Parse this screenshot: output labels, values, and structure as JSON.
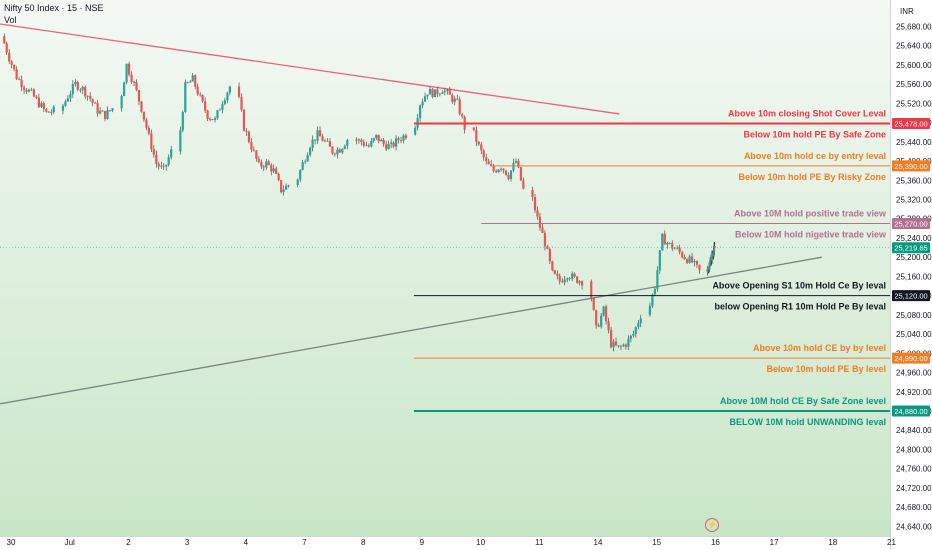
{
  "header": {
    "title": "Nifty 50 Index · 15 · NSE",
    "volume_label": "Vol"
  },
  "currency": "INR",
  "icons": {
    "bottom_marker": "lightning-icon"
  },
  "colors": {
    "background_top": "#f4f9f4",
    "background_bottom": "#c9e6c8",
    "candle_up": "#26a69a",
    "candle_down": "#ef5350",
    "wick": "#333333",
    "red_line": "#f23645",
    "orange_line": "#f57c1f",
    "purple_line": "#b4708f",
    "black_line": "#131722",
    "teal_line": "#089981",
    "current_price": "#089981",
    "trendline_down": "#f06277",
    "trendline_up": "#7a8580"
  },
  "chart_data": {
    "type": "candlestick",
    "title": "Nifty 50 Index · 15 · NSE",
    "xlabel": "",
    "ylabel": "",
    "ylim": [
      24620,
      25735
    ],
    "y_ticks": [
      25680,
      25640,
      25600,
      25560,
      25520,
      25480,
      25440,
      25400,
      25360,
      25320,
      25280,
      25240,
      25200,
      25160,
      25120,
      25080,
      25040,
      25000,
      24960,
      24920,
      24880,
      24840,
      24800,
      24760,
      24720,
      24680,
      24640
    ],
    "y_tick_labels": [
      "25,680.00",
      "25,640.00",
      "25,600.00",
      "25,560.00",
      "25,520.00",
      "25,480.00",
      "25,440.00",
      "25,400.00",
      "25,360.00",
      "25,320.00",
      "25,280.00",
      "25,240.00",
      "25,200.00",
      "25,160.00",
      "25,120.00",
      "25,080.00",
      "25,040.00",
      "25,000.00",
      "24,960.00",
      "24,920.00",
      "24,880.00",
      "24,840.00",
      "24,800.00",
      "24,760.00",
      "24,720.00",
      "24,680.00",
      "24,640.00"
    ],
    "x_ticks": [
      {
        "label": "30",
        "session": 0
      },
      {
        "label": "Jul",
        "session": 1
      },
      {
        "label": "2",
        "session": 2
      },
      {
        "label": "3",
        "session": 3
      },
      {
        "label": "4",
        "session": 4
      },
      {
        "label": "7",
        "session": 5
      },
      {
        "label": "8",
        "session": 6
      },
      {
        "label": "9",
        "session": 7
      },
      {
        "label": "10",
        "session": 8
      },
      {
        "label": "11",
        "session": 9
      },
      {
        "label": "14",
        "session": 10
      },
      {
        "label": "15",
        "session": 11
      },
      {
        "label": "16",
        "session": 12
      },
      {
        "label": "17",
        "session": 13
      },
      {
        "label": "18",
        "session": 14
      },
      {
        "label": "21",
        "session": 15
      }
    ],
    "session_closes": [
      [
        25660,
        25615,
        25575,
        25555,
        25540,
        25520,
        25500,
        25505
      ],
      [
        25505,
        25535,
        25560,
        25550,
        25530,
        25505,
        25495,
        25510
      ],
      [
        25510,
        25600,
        25560,
        25510,
        25450,
        25395,
        25380,
        25420
      ],
      [
        25420,
        25555,
        25570,
        25530,
        25495,
        25485,
        25525,
        25555
      ],
      [
        25555,
        25470,
        25430,
        25390,
        25395,
        25380,
        25340,
        25350
      ],
      [
        25350,
        25395,
        25435,
        25455,
        25440,
        25420,
        25425,
        25445
      ],
      [
        25445,
        25440,
        25430,
        25450,
        25435,
        25430,
        25445,
        25455
      ],
      [
        25455,
        25520,
        25545,
        25540,
        25550,
        25535,
        25520,
        25470
      ],
      [
        25470,
        25430,
        25395,
        25380,
        25390,
        25370,
        25400,
        25340
      ],
      [
        25340,
        25280,
        25230,
        25165,
        25150,
        25165,
        25155,
        25150
      ],
      [
        25150,
        25050,
        25090,
        25020,
        25010,
        25020,
        25040,
        25080
      ],
      [
        25080,
        25140,
        25240,
        25225,
        25215,
        25200,
        25190,
        25170
      ],
      [
        25170,
        25219.65
      ]
    ],
    "current_price": 25219.65,
    "current_price_label": "25,219.65",
    "trendlines": [
      {
        "name": "falling-resistance",
        "from": {
          "session": -0.05,
          "price": 25685
        },
        "to": {
          "session": 10.5,
          "price": 25498
        }
      },
      {
        "name": "rising-support",
        "from": {
          "session": -0.05,
          "price": 24895
        },
        "to": {
          "session": 13.95,
          "price": 25200
        }
      }
    ],
    "levels": [
      {
        "price": 25478,
        "price_label": "25,478.00",
        "color_key": "red_line",
        "start_session": 7,
        "thickness": 2,
        "labels": [
          {
            "text": "Above 10m closing Shot Cover Leval",
            "side": "above"
          },
          {
            "text": "Below 10m hold PE By Safe Zone",
            "side": "below"
          }
        ]
      },
      {
        "price": 25390,
        "price_label": "25,390.00",
        "color_key": "orange_line",
        "start_session": 8.3,
        "thickness": 1,
        "labels": [
          {
            "text": "Above 10m hold ce by entry leval",
            "side": "above"
          },
          {
            "text": "Below 10m hold PE By Risky Zone",
            "side": "below"
          }
        ]
      },
      {
        "price": 25270,
        "price_label": "25,270.00",
        "color_key": "purple_line",
        "start_session": 8.15,
        "thickness": 1,
        "labels": [
          {
            "text": "Above 10M hold positive trade view",
            "side": "above"
          },
          {
            "text": "Below 10M hold nigetive trade view",
            "side": "below"
          }
        ]
      },
      {
        "price": 25120,
        "price_label": "25,120.00",
        "color_key": "black_line",
        "start_session": 7,
        "thickness": 1,
        "labels": [
          {
            "text": "Above Opening S1 10m Hold Ce By leval",
            "side": "above"
          },
          {
            "text": "below Opening R1 10m Hold Pe By leval",
            "side": "below"
          }
        ]
      },
      {
        "price": 24990,
        "price_label": "24,990.00",
        "color_key": "orange_line",
        "start_session": 7,
        "thickness": 1,
        "labels": [
          {
            "text": "Above 10m hold CE by by level",
            "side": "above"
          },
          {
            "text": "Below 10m hold PE By level",
            "side": "below"
          }
        ]
      },
      {
        "price": 24880,
        "price_label": "24,880.00",
        "color_key": "teal_line",
        "start_session": 7,
        "thickness": 2,
        "labels": [
          {
            "text": "Above 10M hold CE By Safe Zone level",
            "side": "above"
          },
          {
            "text": "BELOW 10M hold UNWANDING leval",
            "side": "below"
          }
        ]
      }
    ]
  }
}
